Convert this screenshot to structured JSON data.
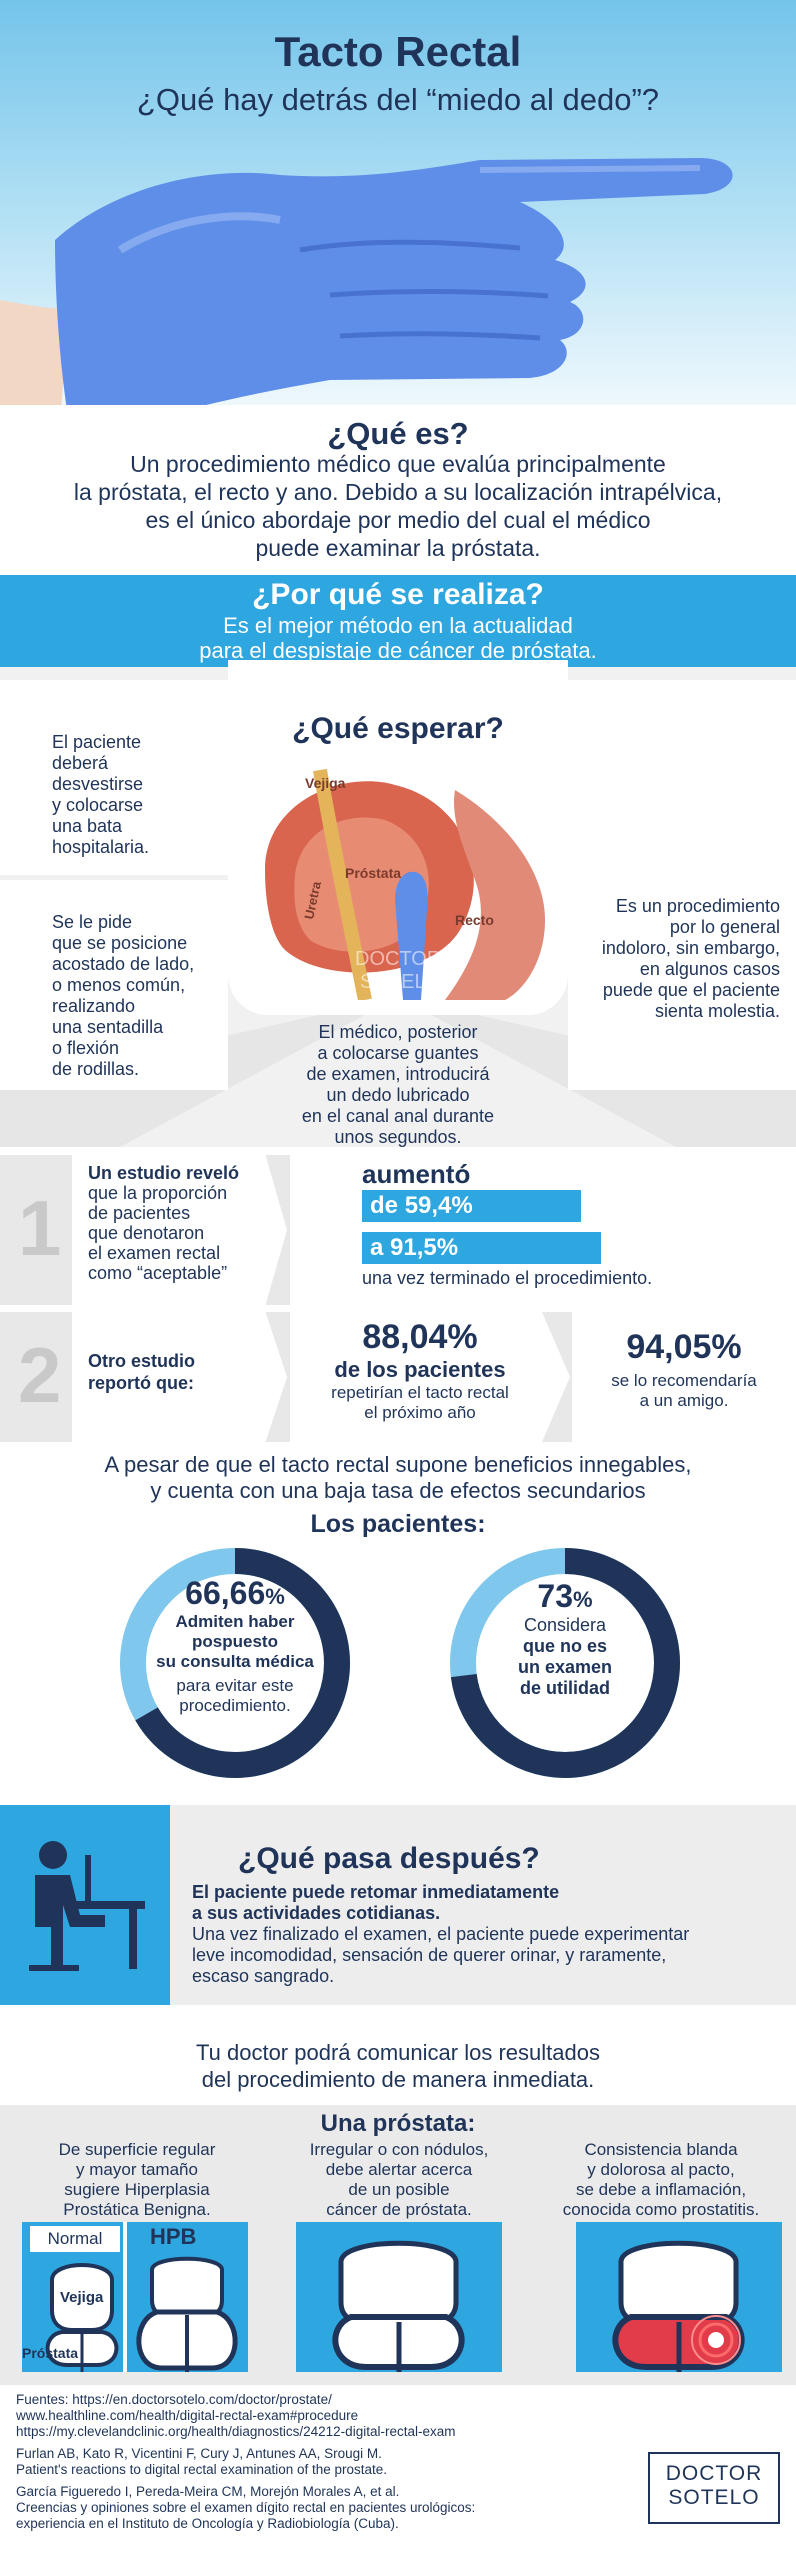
{
  "header": {
    "title": "Tacto Rectal",
    "subtitle": "¿Qué hay detrás del “miedo al dedo”?"
  },
  "que_es": {
    "title": "¿Qué es?",
    "lines": [
      "Un procedimiento médico que evalúa principalmente",
      "la próstata, el recto y ano. Debido a su localización intrapélvica,",
      "es el único abordaje por medio del cual el médico",
      "puede examinar la próstata."
    ]
  },
  "por_que": {
    "title": "¿Por qué se realiza?",
    "lines": [
      "Es el mejor método en la actualidad",
      "para el despistaje de cáncer de próstata."
    ]
  },
  "esperar": {
    "title": "¿Qué esperar?",
    "anatomy_labels": {
      "vejiga": "Vejiga",
      "prostata": "Próstata",
      "uretra": "Uretra",
      "recto": "Recto"
    },
    "watermark": [
      "DOCTOR",
      "SOTELO"
    ],
    "left_top": [
      "El paciente",
      "deberá",
      "desvestirse",
      "y colocarse",
      "una bata",
      "hospitalaria."
    ],
    "left_bottom": [
      "Se le pide",
      "que se posicione",
      "acostado de lado,",
      "o menos común,",
      "realizando",
      "una sentadilla",
      "o flexión",
      "de rodillas."
    ],
    "center_bottom": [
      "El médico, posterior",
      "a colocarse guantes",
      "de examen, introducirá",
      "un dedo lubricado",
      "en el canal anal durante",
      "unos segundos."
    ],
    "right": [
      "Es un procedimiento",
      "por lo general",
      "indoloro, sin embargo,",
      "en algunos casos",
      "puede que el paciente",
      "sienta molestia."
    ]
  },
  "study1": {
    "number": "1",
    "text": [
      "Un estudio reveló",
      "que la proporción",
      "de pacientes",
      "que denotaron",
      "el examen rectal",
      "como “aceptable”"
    ],
    "aumento": "aumentó",
    "from_prefix": "de",
    "from_value": "59,4",
    "to_prefix": "a",
    "to_value": "91,5",
    "pct": "%",
    "footer": "una vez terminado el procedimiento.",
    "chart_data": {
      "type": "bar",
      "categories": [
        "de",
        "a"
      ],
      "values": [
        59.4,
        91.5
      ]
    }
  },
  "study2": {
    "number": "2",
    "text": [
      "Otro estudio",
      "reportó que:"
    ],
    "stat1_value": "88,04%",
    "stat1_bold": "de los pacientes",
    "stat1_lines": [
      "repetirían el tacto rectal",
      "el próximo año"
    ],
    "stat2_value": "94,05%",
    "stat2_lines": [
      "se lo recomendaría",
      "a un amigo."
    ]
  },
  "pacientes": {
    "intro": [
      "A pesar de que el tacto rectal supone beneficios innegables,",
      "y cuenta con una baja tasa de efectos secundarios"
    ],
    "title": "Los pacientes:",
    "donut1": {
      "value": "66,66",
      "pct": "%",
      "fraction": 0.6666,
      "bold_lines": [
        "Admiten haber",
        "pospuesto",
        "su consulta médica"
      ],
      "lines": [
        "para evitar este",
        "procedimiento."
      ]
    },
    "donut2": {
      "value": "73",
      "pct": "%",
      "fraction": 0.73,
      "lines": [
        "Considera"
      ],
      "bold_lines": [
        "que no es",
        "un examen",
        "de utilidad"
      ]
    }
  },
  "despues": {
    "title": "¿Qué pasa después?",
    "bold_lines": [
      "El paciente puede retomar inmediatamente",
      "a sus actividades cotidianas."
    ],
    "lines": [
      "Una vez finalizado el examen, el paciente puede experimentar",
      "leve incomodidad, sensación de querer orinar, y raramente,",
      "escaso sangrado."
    ]
  },
  "resultados": [
    "Tu doctor podrá comunicar los resultados",
    "del procedimiento de manera inmediata."
  ],
  "prostata": {
    "title": "Una próstata:",
    "col1": [
      "De superficie regular",
      "y mayor tamaño",
      "sugiere Hiperplasia",
      "Prostática Benigna."
    ],
    "col2": [
      "Irregular o con nódulos,",
      "debe alertar acerca",
      "de un posible",
      "cáncer de próstata."
    ],
    "col3": [
      "Consistencia blanda",
      "y dolorosa al pacto,",
      "se debe a inflamación,",
      "conocida como prostatitis."
    ],
    "labels": {
      "normal": "Normal",
      "hpb": "HPB",
      "vejiga": "Vejiga",
      "prostata": "Próstata"
    }
  },
  "fuentes": {
    "lines": [
      "Fuentes: https://en.doctorsotelo.com/doctor/prostate/",
      "www.healthline.com/health/digital-rectal-exam#procedure",
      "https://my.clevelandclinic.org/health/diagnostics/24212-digital-rectal-exam"
    ],
    "refs": [
      "Furlan AB, Kato R, Vicentini F, Cury J, Antunes AA, Srougi M.",
      "Patient's reactions to digital rectal examination of the prostate.",
      "García Figueredo I, Pereda-Meira CM, Morejón Morales A, et al.",
      "Creencias y opiniones sobre el examen dígito rectal en pacientes urológicos:",
      "experiencia en el Instituto de Oncología y Radiobiología (Cuba)."
    ],
    "logo": [
      "DOCTOR",
      "SOTELO"
    ]
  },
  "colors": {
    "accent": "#2ea6df",
    "dark": "#1f3458",
    "light_bg": "#ededed",
    "glove": "#5f8ee8",
    "bladder": "#d9654f"
  }
}
